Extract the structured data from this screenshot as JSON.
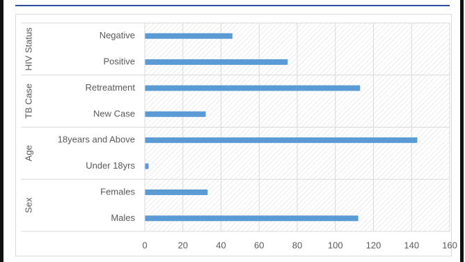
{
  "chart_data": {
    "type": "bar",
    "orientation": "horizontal",
    "color": "#5b9bd5",
    "groups": [
      {
        "label": "HIV Status",
        "categories": [
          "Negative",
          "Positive"
        ],
        "values": [
          46,
          75
        ]
      },
      {
        "label": "TB Case",
        "categories": [
          "Retreatment",
          "New Case"
        ],
        "values": [
          113,
          32
        ]
      },
      {
        "label": "Age",
        "categories": [
          "18years and Above",
          "Under 18yrs"
        ],
        "values": [
          143,
          2
        ]
      },
      {
        "label": "Sex",
        "categories": [
          "Females",
          "Males"
        ],
        "values": [
          33,
          112
        ]
      }
    ],
    "xlim": [
      0,
      160
    ],
    "xticks": [
      0,
      20,
      40,
      60,
      80,
      100,
      120,
      140,
      160
    ],
    "grid": true
  }
}
